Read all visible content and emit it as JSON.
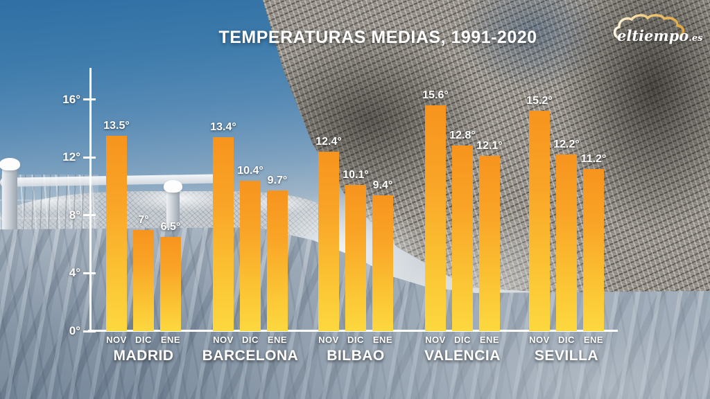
{
  "header": {
    "logo_text": "eltiempo",
    "logo_suffix": ".es"
  },
  "chart_data": {
    "type": "bar",
    "title": "TEMPERATURAS MEDIAS, 1991-2020",
    "categories": [
      "NOV",
      "DIC",
      "ENE"
    ],
    "unit": "°C",
    "groups": [
      {
        "city": "MADRID",
        "values": [
          13.5,
          7.0,
          6.5
        ],
        "labels": [
          "13.5°",
          "7°",
          "6.5°"
        ]
      },
      {
        "city": "BARCELONA",
        "values": [
          13.4,
          10.4,
          9.7
        ],
        "labels": [
          "13.4°",
          "10.4°",
          "9.7°"
        ]
      },
      {
        "city": "BILBAO",
        "values": [
          12.4,
          10.1,
          9.4
        ],
        "labels": [
          "12.4°",
          "10.1°",
          "9.4°"
        ]
      },
      {
        "city": "VALENCIA",
        "values": [
          15.6,
          12.8,
          12.1
        ],
        "labels": [
          "15.6°",
          "12.8°",
          "12.1°"
        ]
      },
      {
        "city": "SEVILLA",
        "values": [
          15.2,
          12.2,
          11.2
        ],
        "labels": [
          "15.2°",
          "12.2°",
          "11.2°"
        ]
      }
    ],
    "y_axis": {
      "ticks": [
        "0°",
        "4°",
        "8°",
        "12°",
        "16°"
      ],
      "values": [
        0,
        4,
        8,
        12,
        16
      ],
      "range": [
        0,
        18
      ]
    },
    "grid": false,
    "legend": false,
    "colors": {
      "bar_top": "#f7941e",
      "bar_bottom": "#fdd83f",
      "text": "#ffffff",
      "logo_cloud": "#e9bd62"
    }
  }
}
